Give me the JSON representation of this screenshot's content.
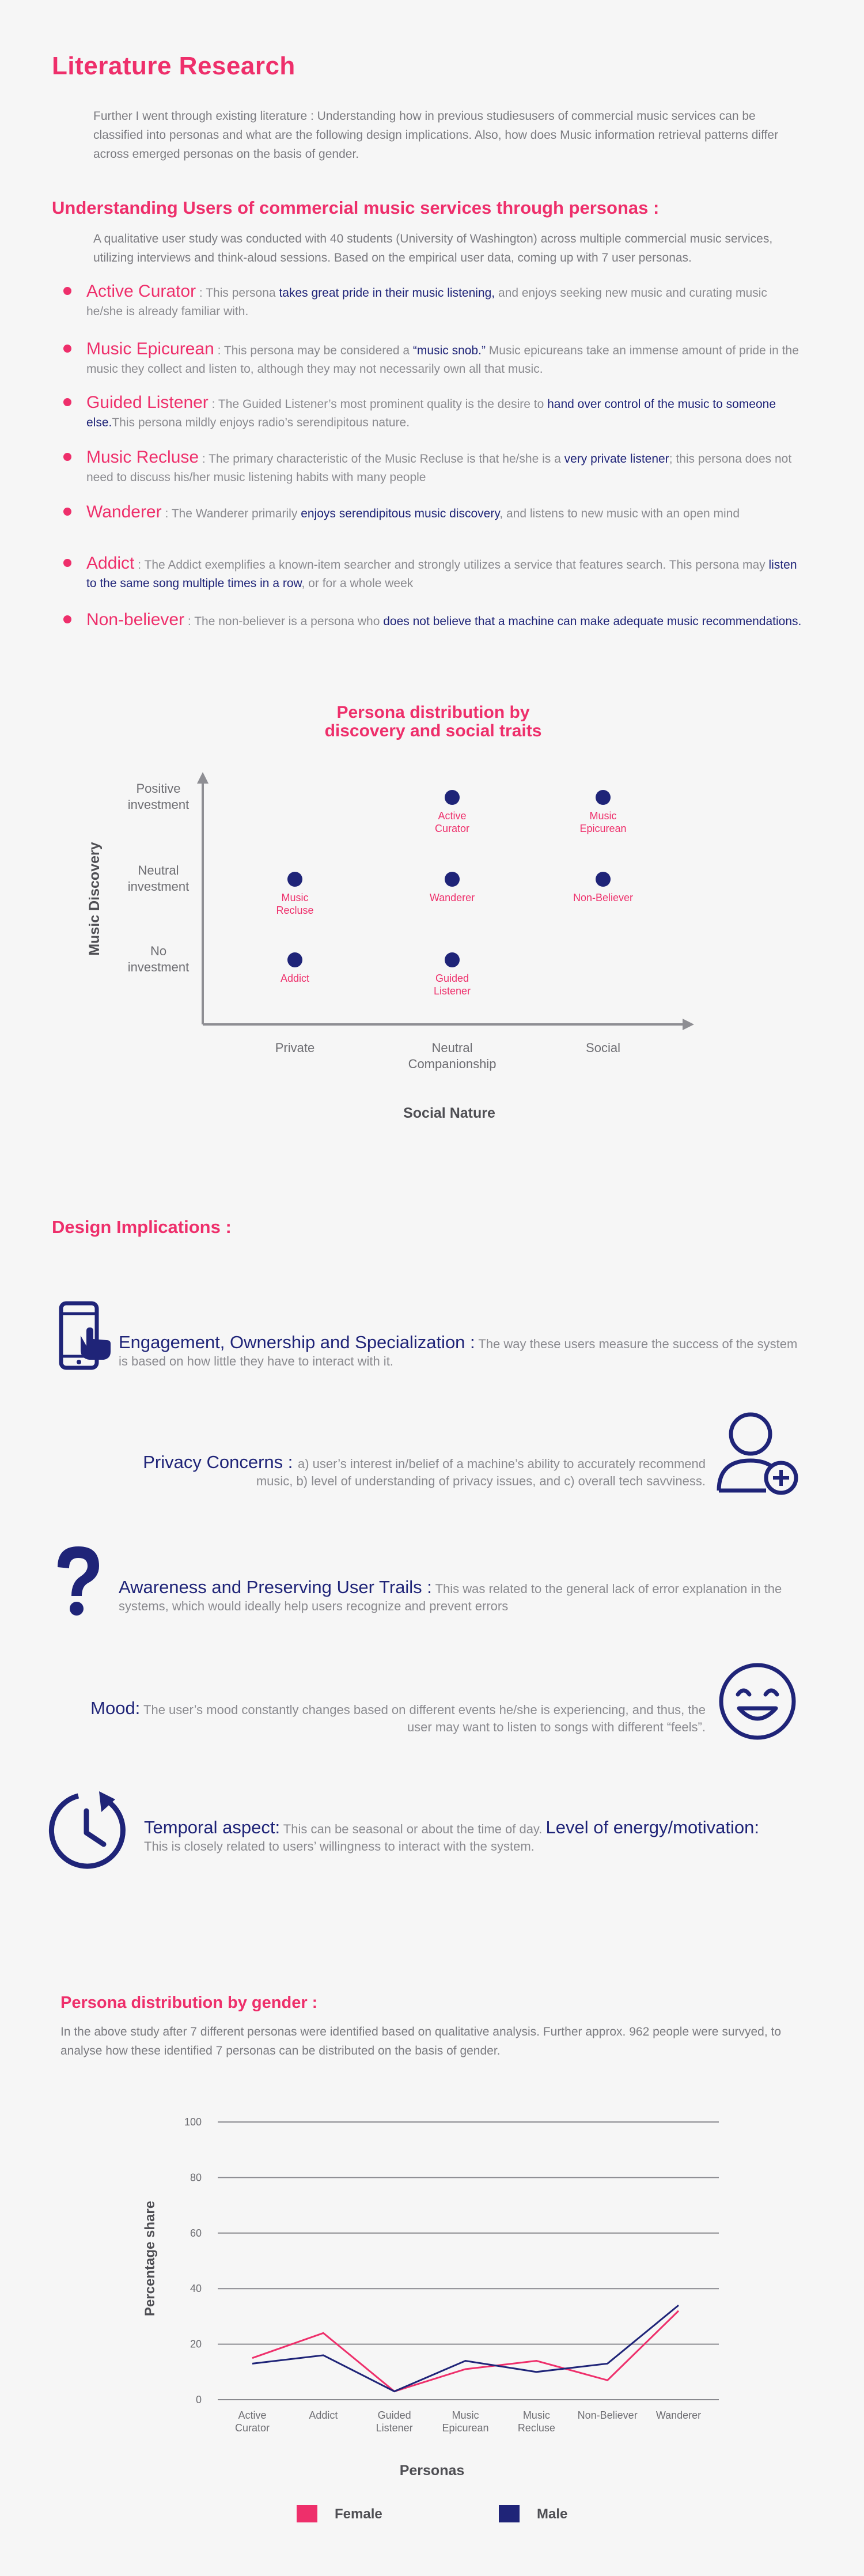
{
  "literature": {
    "title": "Literature Research",
    "intro": "Further I went through existing literature : Understanding how in previous studiesusers of commercial music services can be classified into personas and what are the following design implications. Also, how does Music information retrieval patterns differ across emerged personas on the basis of gender."
  },
  "personas_section": {
    "title": "Understanding Users of commercial music services through personas :",
    "intro": "A qualitative user study was conducted with 40 students (University of Washington) across multiple commercial music services, utilizing interviews and think-aloud sessions. Based on the empirical user data, coming up with 7 user personas.",
    "items": [
      {
        "name": "Active Curator",
        "pre": " : This persona ",
        "hl": "takes great pride in their music listening,",
        "post": "  and enjoys seeking new music and curating music he/she is already familiar with."
      },
      {
        "name": "Music Epicurean",
        "pre": " : This persona may be considered a ",
        "hl": "“music snob.”",
        "post": " Music epicureans take an immense amount of pride in the music they collect and listen to, although they may not necessarily own all that music."
      },
      {
        "name": "Guided Listener",
        "pre": " : The Guided Listener’s most prominent quality is the desire to ",
        "hl": "hand over control of the music to someone else.",
        "post": "This persona mildly enjoys radio’s serendipitous nature."
      },
      {
        "name": "Music Recluse",
        "pre": " : The primary characteristic of the Music Recluse is that he/she is a ",
        "hl": "very private listener",
        "post": "; this persona does not need to discuss his/her music listening habits with many people"
      },
      {
        "name": "Wanderer",
        "pre": " : The Wanderer primarily ",
        "hl": "enjoys serendipitous music discovery",
        "post": ", and listens to new music with an open mind"
      },
      {
        "name": "Addict",
        "pre": " : The Addict exemplifies a known-item searcher and strongly utilizes a service that features search. This persona may ",
        "hl": "listen to the same song multiple times in a row",
        "post": ", or for a whole week"
      },
      {
        "name": "Non-believer",
        "pre": " : The non-believer is a persona who ",
        "hl": "does not believe that a machine can make adequate music recommendations.",
        "post": ""
      }
    ]
  },
  "colors": {
    "accent": "#ee2f6b",
    "navy": "#1f2478",
    "text": "#7b7b80",
    "background": "#f6f6f6"
  },
  "chart_data": [
    {
      "type": "scatter",
      "title": "Persona distribution by discovery and social traits",
      "xlabel": "Social Nature",
      "ylabel": "Music Discovery",
      "x_categories": [
        "Private",
        "Neutral Companionship",
        "Social"
      ],
      "y_categories": [
        "No investment",
        "Neutral investment",
        "Positive investment"
      ],
      "points": [
        {
          "label": "Active Curator",
          "x": "Neutral Companionship",
          "y": "Positive investment"
        },
        {
          "label": "Music Epicurean",
          "x": "Social",
          "y": "Positive investment"
        },
        {
          "label": "Music Recluse",
          "x": "Private",
          "y": "Neutral investment"
        },
        {
          "label": "Wanderer",
          "x": "Neutral Companionship",
          "y": "Neutral investment"
        },
        {
          "label": "Non-Believer",
          "x": "Social",
          "y": "Neutral investment"
        },
        {
          "label": "Addict",
          "x": "Private",
          "y": "No investment"
        },
        {
          "label": "Guided Listener",
          "x": "Neutral Companionship",
          "y": "No investment"
        }
      ]
    },
    {
      "type": "line",
      "xlabel": "Personas",
      "ylabel": "Percentage share",
      "categories": [
        "Active Curator",
        "Addict",
        "Guided Listener",
        "Music Epicurean",
        "Music Recluse",
        "Non-Believer",
        "Wanderer"
      ],
      "ylim": [
        0,
        100
      ],
      "yticks": [
        "0",
        "20",
        "40",
        "60",
        "80",
        "100"
      ],
      "grid": true,
      "legend": "bottom",
      "series": [
        {
          "name": "Female",
          "color": "#ee2f6b",
          "values": [
            15,
            24,
            3,
            11,
            14,
            7,
            32
          ]
        },
        {
          "name": "Male",
          "color": "#1f2478",
          "values": [
            13,
            16,
            3,
            14,
            10,
            13,
            34
          ]
        }
      ]
    }
  ],
  "design": {
    "title": "Design Implications :",
    "items": [
      {
        "title": "Engagement, Ownership and Specialization :",
        "text": " The way these users measure the success of the system is based on how little they have to interact with it.",
        "icon": "phone-touch-icon"
      },
      {
        "title": "Privacy Concerns : ",
        "text": " a) user’s interest in/belief of a machine’s ability to accurately recommend music, b) level of understanding of privacy issues, and c) overall tech savviness.",
        "icon": "user-add-icon"
      },
      {
        "title": "Awareness and Preserving User Trails :",
        "text": " This was  related to the general lack of error explanation in the systems, which would ideally help users recognize and prevent errors",
        "icon": "question-mark-icon"
      },
      {
        "title": "Mood:",
        "text": " The user’s mood constantly changes based on different events he/she is experiencing, and thus, the user may want to listen to songs with different “feels”.",
        "icon": "smiley-icon"
      },
      {
        "title": "Temporal aspect:",
        "text": " This can be seasonal or about the time of day.  ",
        "title2": "Level of energy/motivation:",
        "text2": "This is closely related to users’ willingness to interact with the system.",
        "icon": "clock-icon"
      }
    ]
  },
  "gender": {
    "title": "Persona distribution by gender :",
    "intro": "In the above study after 7 different personas were identified based on qualitative analysis. Further approx. 962 people were survyed, to analyse how these identified 7 personas can be distributed on the basis of gender."
  }
}
